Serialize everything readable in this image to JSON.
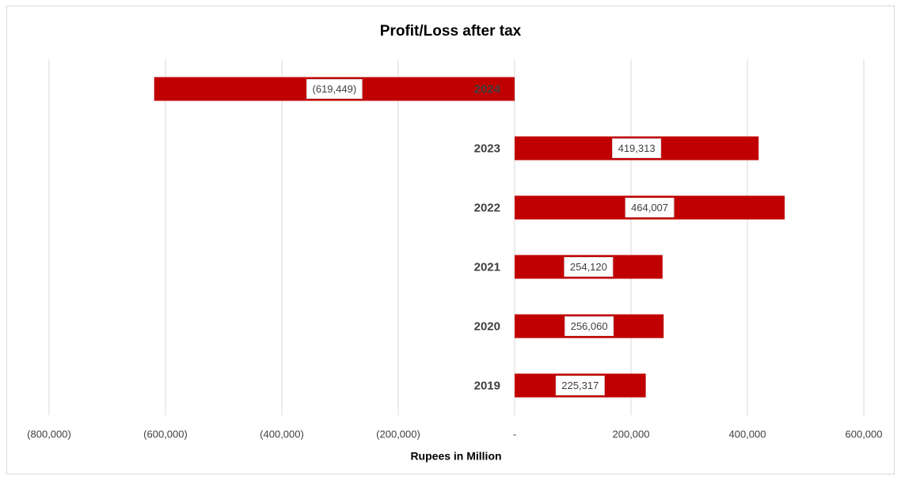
{
  "chart_data": {
    "type": "bar",
    "orientation": "horizontal",
    "title": "Profit/Loss after tax",
    "x_label": "Rupees in Million",
    "categories": [
      "2024",
      "2023",
      "2022",
      "2021",
      "2020",
      "2019"
    ],
    "values": [
      -619449,
      419313,
      464007,
      254120,
      256060,
      225317
    ],
    "value_labels": [
      "(619,449)",
      "419,313",
      "464,007",
      "254,120",
      "256,060",
      "225,317"
    ],
    "color": "#c00000",
    "xlim": [
      -800000,
      600000
    ],
    "xticks": [
      {
        "value": -800000,
        "label": "(800,000)"
      },
      {
        "value": -600000,
        "label": "(600,000)"
      },
      {
        "value": -400000,
        "label": "(400,000)"
      },
      {
        "value": -200000,
        "label": "(200,000)"
      },
      {
        "value": 0,
        "label": "-"
      },
      {
        "value": 200000,
        "label": "200,000"
      },
      {
        "value": 400000,
        "label": "400,000"
      },
      {
        "value": 600000,
        "label": "600,000"
      }
    ],
    "grid": true
  }
}
